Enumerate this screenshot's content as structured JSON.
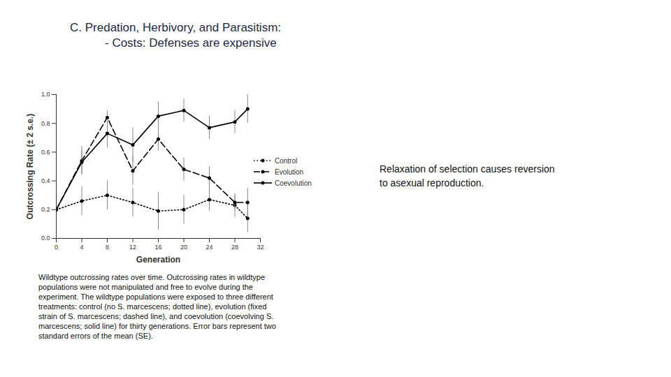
{
  "chart_data": {
    "type": "line",
    "title": "C. Predation, Herbivory, and Parasitism:",
    "subtitle": "- Costs: Defenses are expensive",
    "x_label": "Generation",
    "y_label": "Outcrossing Rate (± 2 s.e.)",
    "annotations": [
      "Relaxation of selection causes reversion to asexual reproduction.",
      "Wildtype outcrossing rates over time. Outcrossing rates in wildtype populations were not manipulated and free to evolve during the experiment. The wildtype populations were exposed to three different treatments: control (no S. marcescens; dotted line), evolution (fixed strain of S. marcescens; dashed line), and coevolution (coevolving S. marcescens; solid line) for thirty generations. Error bars represent two standard errors of the mean (SE)."
    ],
    "x": [
      0,
      4,
      8,
      12,
      16,
      20,
      24,
      28,
      30
    ],
    "series": [
      {
        "name": "Control",
        "color": "#000000",
        "line_style": "dotted",
        "marker": "circle",
        "values": [
          0.2,
          0.26,
          0.3,
          0.25,
          0.19,
          0.2,
          0.27,
          0.23,
          0.14
        ],
        "errors": [
          0.02,
          0.1,
          0.1,
          0.1,
          0.13,
          0.1,
          0.08,
          0.08,
          0.1
        ]
      },
      {
        "name": "Evolution",
        "color": "#000000",
        "line_style": "dashed",
        "marker": "circle",
        "values": [
          0.2,
          0.54,
          0.84,
          0.47,
          0.69,
          0.48,
          0.42,
          0.25,
          0.25
        ],
        "errors": [
          0.02,
          0.1,
          0.05,
          0.1,
          0.08,
          0.08,
          0.08,
          0.05,
          0.1
        ]
      },
      {
        "name": "Coevolution",
        "color": "#000000",
        "line_style": "solid",
        "marker": "circle",
        "values": [
          0.2,
          0.53,
          0.73,
          0.65,
          0.85,
          0.89,
          0.77,
          0.81,
          0.9
        ],
        "errors": [
          0.02,
          0.08,
          0.1,
          0.12,
          0.1,
          0.08,
          0.08,
          0.08,
          0.1
        ]
      }
    ],
    "xlim": [
      0,
      32
    ],
    "xticks": [
      0,
      4,
      8,
      12,
      16,
      20,
      24,
      28,
      32
    ],
    "ylim": [
      0,
      1
    ],
    "yticks": [
      0,
      0.2,
      0.4,
      0.6,
      0.8,
      1
    ],
    "grid": false,
    "legend": "right"
  }
}
